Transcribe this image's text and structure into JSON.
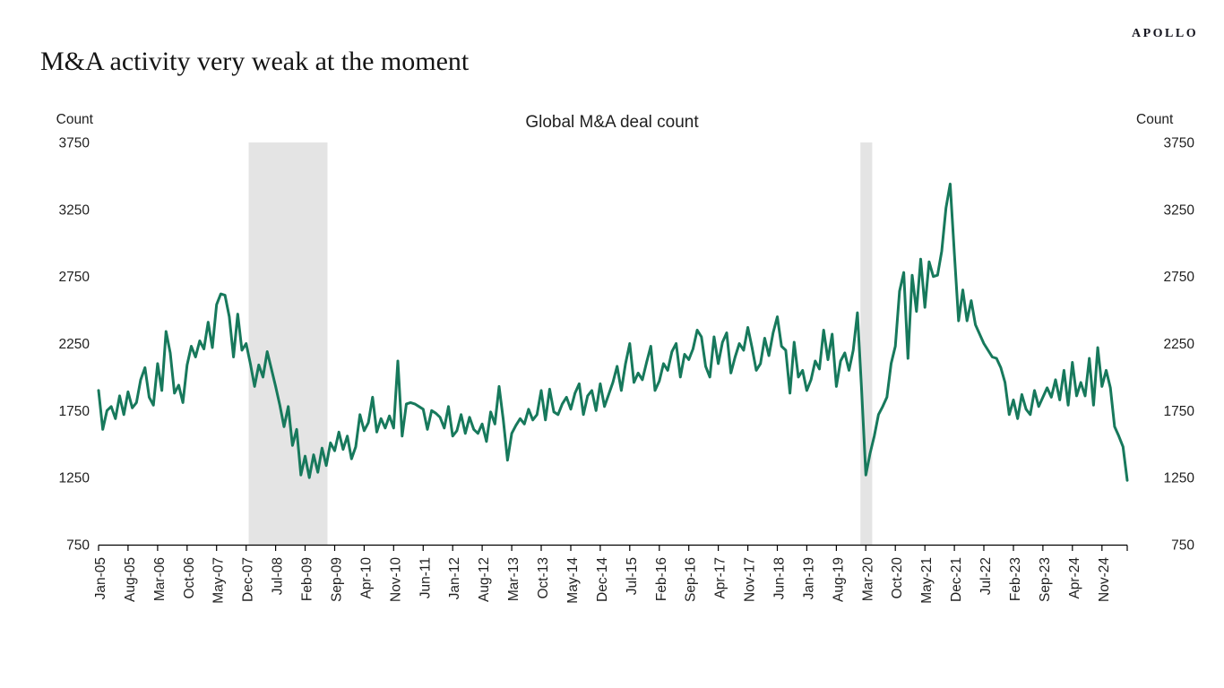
{
  "header": {
    "logo": "APOLLO",
    "headline": "M&A activity very weak at the moment"
  },
  "chart_data": {
    "type": "line",
    "title": "Global M&A deal count",
    "y_axis_label_left": "Count",
    "y_axis_label_right": "Count",
    "y_ticks": [
      3750,
      3250,
      2750,
      2250,
      1750,
      1250,
      750
    ],
    "ylim": [
      750,
      3750
    ],
    "grid": false,
    "legend": false,
    "x_start_month": "Jan-05",
    "x_end_month": "May-25",
    "x_tick_interval_months": 7,
    "x_tick_labels": [
      "Jan-05",
      "Aug-05",
      "Mar-06",
      "Oct-06",
      "May-07",
      "Dec-07",
      "Jul-08",
      "Feb-09",
      "Sep-09",
      "Apr-10",
      "Nov-10",
      "Jun-11",
      "Jan-12",
      "Aug-12",
      "Mar-13",
      "Oct-13",
      "May-14",
      "Dec-14",
      "Jul-15",
      "Feb-16",
      "Sep-16",
      "Apr-17",
      "Nov-17",
      "Jun-18",
      "Jan-19",
      "Aug-19",
      "Mar-20",
      "Oct-20",
      "May-21",
      "Dec-21",
      "Jul-22",
      "Feb-23",
      "Sep-23",
      "Apr-24",
      "Nov-24"
    ],
    "recession_bands": [
      {
        "label": "global-financial-crisis-recession",
        "start_month": "Dec-07",
        "end_month": "Jul-09",
        "start_index": 35.6,
        "end_index": 54.3
      },
      {
        "label": "covid-recession",
        "start_month": "Feb-20",
        "end_month": "Apr-20",
        "start_index": 180.7,
        "end_index": 183.5
      }
    ],
    "band_color": "#E4E4E4",
    "series": [
      {
        "name": "Global M&A deal count",
        "color": "#17795C",
        "frequency": "monthly",
        "monthly_values": [
          1900,
          1610,
          1750,
          1780,
          1690,
          1860,
          1720,
          1890,
          1770,
          1810,
          1980,
          2070,
          1850,
          1790,
          2100,
          1900,
          2340,
          2180,
          1880,
          1940,
          1810,
          2090,
          2230,
          2150,
          2270,
          2210,
          2410,
          2220,
          2540,
          2620,
          2610,
          2450,
          2150,
          2470,
          2200,
          2250,
          2100,
          1930,
          2090,
          2000,
          2190,
          2060,
          1930,
          1790,
          1630,
          1780,
          1490,
          1610,
          1270,
          1410,
          1250,
          1420,
          1290,
          1470,
          1340,
          1510,
          1450,
          1590,
          1460,
          1560,
          1390,
          1480,
          1720,
          1600,
          1660,
          1850,
          1590,
          1690,
          1620,
          1710,
          1620,
          2120,
          1560,
          1800,
          1810,
          1800,
          1780,
          1760,
          1610,
          1750,
          1730,
          1700,
          1620,
          1780,
          1560,
          1600,
          1720,
          1580,
          1700,
          1610,
          1580,
          1650,
          1520,
          1740,
          1650,
          1930,
          1680,
          1380,
          1580,
          1640,
          1690,
          1650,
          1760,
          1680,
          1720,
          1900,
          1680,
          1910,
          1740,
          1720,
          1800,
          1850,
          1760,
          1880,
          1950,
          1720,
          1860,
          1900,
          1750,
          1950,
          1780,
          1870,
          1960,
          2080,
          1900,
          2100,
          2250,
          1960,
          2030,
          1980,
          2110,
          2230,
          1900,
          1970,
          2100,
          2050,
          2190,
          2250,
          2000,
          2170,
          2130,
          2210,
          2350,
          2300,
          2080,
          2000,
          2300,
          2100,
          2260,
          2330,
          2030,
          2150,
          2250,
          2200,
          2370,
          2220,
          2050,
          2100,
          2290,
          2160,
          2330,
          2450,
          2230,
          2200,
          1880,
          2260,
          2000,
          2050,
          1900,
          1980,
          2120,
          2060,
          2350,
          2130,
          2320,
          1930,
          2120,
          2180,
          2050,
          2200,
          2480,
          1900,
          1270,
          1430,
          1560,
          1720,
          1780,
          1850,
          2100,
          2230,
          2640,
          2780,
          2140,
          2760,
          2490,
          2880,
          2520,
          2860,
          2750,
          2760,
          2940,
          3260,
          3440,
          2920,
          2420,
          2650,
          2420,
          2570,
          2390,
          2320,
          2250,
          2200,
          2150,
          2140,
          2070,
          1960,
          1720,
          1830,
          1690,
          1870,
          1760,
          1720,
          1900,
          1780,
          1850,
          1920,
          1850,
          1980,
          1830,
          2050,
          1790,
          2110,
          1860,
          1960,
          1860,
          2140,
          1790,
          2220,
          1930,
          2050,
          1920,
          1630,
          1560,
          1480,
          1230
        ]
      }
    ]
  }
}
